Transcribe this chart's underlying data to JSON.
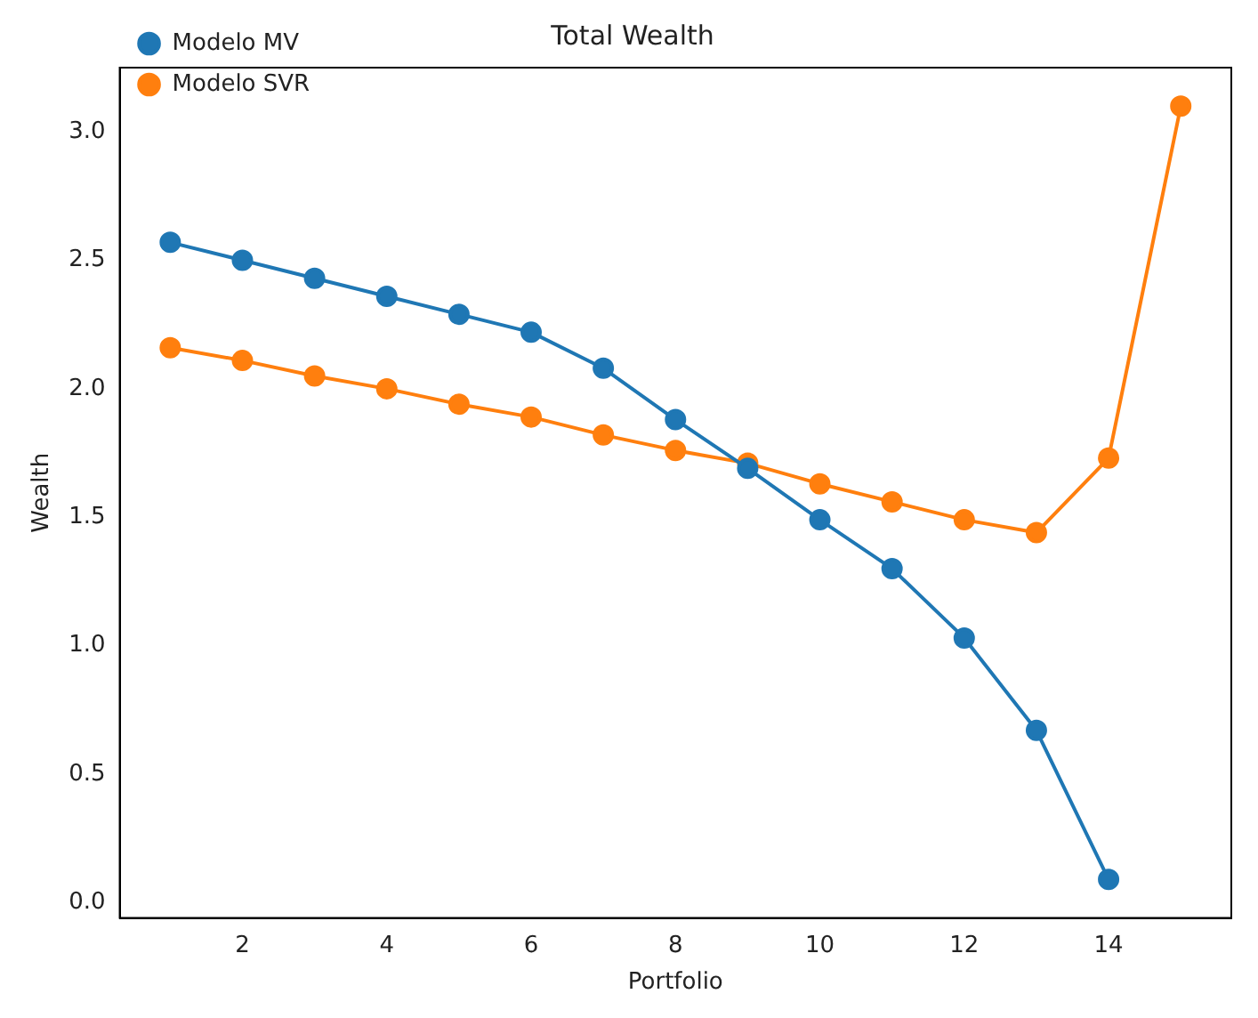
{
  "chart_data": {
    "type": "line",
    "title": "Total Wealth",
    "xlabel": "Portfolio",
    "ylabel": "Wealth",
    "series": [
      {
        "name": "Modelo MV",
        "color": "#1f77b4",
        "x": [
          1,
          2,
          3,
          4,
          5,
          6,
          7,
          8,
          9,
          10,
          11,
          12,
          13,
          14
        ],
        "values": [
          2.57,
          2.5,
          2.43,
          2.36,
          2.29,
          2.22,
          2.08,
          1.88,
          1.69,
          1.49,
          1.3,
          1.03,
          0.67,
          0.09
        ]
      },
      {
        "name": "Modelo SVR",
        "color": "#ff7f0e",
        "x": [
          1,
          2,
          3,
          4,
          5,
          6,
          7,
          8,
          9,
          10,
          11,
          12,
          13,
          14,
          15
        ],
        "values": [
          2.16,
          2.11,
          2.05,
          2.0,
          1.94,
          1.89,
          1.82,
          1.76,
          1.71,
          1.63,
          1.56,
          1.49,
          1.44,
          1.73,
          3.1
        ]
      }
    ],
    "xlim": [
      0.3,
      15.7
    ],
    "xticks": [
      2,
      4,
      6,
      8,
      10,
      12,
      14
    ],
    "ylim": [
      -0.06,
      3.25
    ],
    "yticks": [
      {
        "value": 0,
        "label": "0.0"
      },
      {
        "value": 0.5,
        "label": "0.5"
      },
      {
        "value": 1,
        "label": "1.0"
      },
      {
        "value": 1.5,
        "label": "1.5"
      },
      {
        "value": 2,
        "label": "2.0"
      },
      {
        "value": 2.5,
        "label": "2.5"
      },
      {
        "value": 3,
        "label": "3.0"
      }
    ],
    "grid": false,
    "legend": "top left",
    "marker": "circle",
    "line_style": "solid"
  }
}
